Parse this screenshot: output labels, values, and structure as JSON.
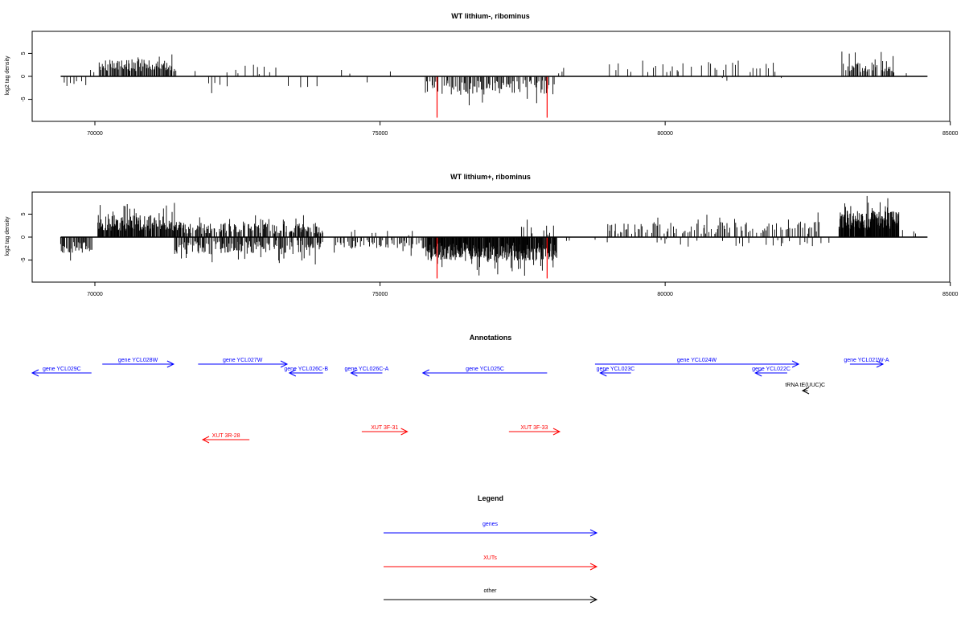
{
  "chart_data": [
    {
      "type": "bar",
      "title": "WT lithium-, ribominus",
      "ylabel": "log2 tag density",
      "xlabel": "",
      "xlim": [
        68900,
        84990
      ],
      "ylim": [
        -9.8,
        9.8
      ],
      "x_ticks": [
        70000,
        75000,
        80000,
        85000
      ],
      "y_ticks": [
        -5,
        0,
        5
      ],
      "grid": false,
      "baseline": {
        "x_start": 69400,
        "x_end": 84600,
        "color": "#000000"
      },
      "markers": [
        {
          "x": 76000,
          "y": -9,
          "color": "#ff0000"
        },
        {
          "x": 77930,
          "y": -9,
          "color": "#ff0000"
        }
      ],
      "segments": [
        {
          "start": 69400,
          "end": 69850,
          "step": 60,
          "base": 1.8,
          "amp": 1.2,
          "sign": -1,
          "density": 0.85
        },
        {
          "start": 69850,
          "end": 70000,
          "step": 60,
          "base": 0.8,
          "amp": 1.2,
          "sign": 1,
          "density": 0.5
        },
        {
          "start": 70080,
          "end": 71420,
          "step": 15,
          "base": 2.2,
          "amp": 2.6,
          "sign": 1,
          "density": 0.95
        },
        {
          "start": 71500,
          "end": 72400,
          "step": 70,
          "base": 1.2,
          "amp": 2.0,
          "sign": 1,
          "density": 0.3
        },
        {
          "start": 72000,
          "end": 72300,
          "step": 60,
          "base": 1.0,
          "amp": 1.8,
          "sign": -1,
          "density": 0.5
        },
        {
          "start": 72400,
          "end": 73200,
          "step": 55,
          "base": 1.0,
          "amp": 2.5,
          "sign": 1,
          "density": 0.55
        },
        {
          "start": 73400,
          "end": 74000,
          "step": 55,
          "base": 1.2,
          "amp": 2.0,
          "sign": -1,
          "density": 0.45
        },
        {
          "start": 74200,
          "end": 74600,
          "step": 90,
          "base": 1.0,
          "amp": 1.0,
          "sign": 1,
          "density": 0.4
        },
        {
          "start": 74700,
          "end": 75000,
          "step": 70,
          "base": 1.2,
          "amp": 1.0,
          "sign": -1,
          "density": 0.5
        },
        {
          "start": 75000,
          "end": 75300,
          "step": 90,
          "base": 1.0,
          "amp": 1.4,
          "sign": 1,
          "density": 0.4
        },
        {
          "start": 75800,
          "end": 78050,
          "step": 18,
          "base": 1.6,
          "amp": 3.2,
          "sign": -1,
          "density": 0.75
        },
        {
          "start": 78050,
          "end": 78300,
          "step": 60,
          "base": 1.0,
          "amp": 1.0,
          "sign": 1,
          "density": 0.4
        },
        {
          "start": 79000,
          "end": 80100,
          "step": 60,
          "base": 1.0,
          "amp": 2.6,
          "sign": 1,
          "density": 0.55
        },
        {
          "start": 80100,
          "end": 82000,
          "step": 35,
          "base": 1.2,
          "amp": 2.6,
          "sign": 1,
          "density": 0.5
        },
        {
          "start": 81000,
          "end": 82500,
          "step": 120,
          "base": 0.7,
          "amp": 0.8,
          "sign": -1,
          "density": 0.3
        },
        {
          "start": 83100,
          "end": 84000,
          "step": 18,
          "base": 1.8,
          "amp": 2.5,
          "sign": 1,
          "density": 0.85
        },
        {
          "start": 84000,
          "end": 84300,
          "step": 60,
          "base": 0.8,
          "amp": 0.8,
          "sign": 1,
          "density": 0.5
        }
      ]
    },
    {
      "type": "bar",
      "title": "WT lithium+, ribominus",
      "ylabel": "log2 tag density",
      "xlabel": "",
      "xlim": [
        68900,
        84990
      ],
      "ylim": [
        -9.8,
        9.8
      ],
      "x_ticks": [
        70000,
        75000,
        80000,
        85000
      ],
      "y_ticks": [
        -5,
        0,
        5
      ],
      "grid": false,
      "baseline": {
        "x_start": 69400,
        "x_end": 84600,
        "color": "#000000"
      },
      "markers": [
        {
          "x": 76000,
          "y": -9,
          "color": "#ff0000"
        },
        {
          "x": 77930,
          "y": -9,
          "color": "#ff0000"
        }
      ],
      "segments": [
        {
          "start": 69400,
          "end": 69950,
          "step": 14,
          "base": 2.0,
          "amp": 2.5,
          "sign": -1,
          "density": 0.9
        },
        {
          "start": 70050,
          "end": 71500,
          "step": 10,
          "base": 2.8,
          "amp": 3.4,
          "sign": 1,
          "density": 0.95
        },
        {
          "start": 71500,
          "end": 74000,
          "step": 12,
          "base": 1.4,
          "amp": 2.4,
          "sign": 1,
          "density": 0.75
        },
        {
          "start": 71400,
          "end": 74000,
          "step": 14,
          "base": 1.4,
          "amp": 3.0,
          "sign": -1,
          "density": 0.75
        },
        {
          "start": 74200,
          "end": 75800,
          "step": 20,
          "base": 1.2,
          "amp": 2.0,
          "sign": -1,
          "density": 0.7
        },
        {
          "start": 74300,
          "end": 75700,
          "step": 60,
          "base": 0.8,
          "amp": 1.2,
          "sign": 1,
          "density": 0.3
        },
        {
          "start": 75800,
          "end": 78100,
          "step": 8,
          "base": 2.4,
          "amp": 4.0,
          "sign": -1,
          "density": 0.95
        },
        {
          "start": 77400,
          "end": 78050,
          "step": 30,
          "base": 1.0,
          "amp": 2.0,
          "sign": 1,
          "density": 0.5
        },
        {
          "start": 78100,
          "end": 79000,
          "step": 80,
          "base": 0.8,
          "amp": 0.8,
          "sign": -1,
          "density": 0.4
        },
        {
          "start": 79000,
          "end": 82700,
          "step": 22,
          "base": 1.4,
          "amp": 2.6,
          "sign": 1,
          "density": 0.65
        },
        {
          "start": 79800,
          "end": 82900,
          "step": 60,
          "base": 0.8,
          "amp": 1.6,
          "sign": -1,
          "density": 0.35
        },
        {
          "start": 83050,
          "end": 84100,
          "step": 7,
          "base": 3.2,
          "amp": 4.2,
          "sign": 1,
          "density": 0.95
        },
        {
          "start": 84100,
          "end": 84400,
          "step": 50,
          "base": 1.0,
          "amp": 1.2,
          "sign": 1,
          "density": 0.5
        }
      ]
    }
  ],
  "annotations": {
    "title": "Annotations",
    "features": [
      {
        "label": "gene YCL029C",
        "color": "#0000ff",
        "x0": 68900,
        "x1": 69940,
        "strand": "-",
        "lane": 1
      },
      {
        "label": "gene YCL028W",
        "color": "#0000ff",
        "x0": 70130,
        "x1": 71380,
        "strand": "+",
        "lane": 0
      },
      {
        "label": "gene YCL027W",
        "color": "#0000ff",
        "x0": 71810,
        "x1": 73370,
        "strand": "+",
        "lane": 0
      },
      {
        "label": "gene YCL026C-B",
        "color": "#0000ff",
        "x0": 73410,
        "x1": 74000,
        "strand": "-",
        "lane": 1
      },
      {
        "label": "gene YCL026C-A",
        "color": "#0000ff",
        "x0": 74490,
        "x1": 75040,
        "strand": "-",
        "lane": 1
      },
      {
        "label": "gene YCL025C",
        "color": "#0000ff",
        "x0": 75750,
        "x1": 77930,
        "strand": "-",
        "lane": 1
      },
      {
        "label": "gene YCL023C",
        "color": "#0000ff",
        "x0": 78860,
        "x1": 79400,
        "strand": "-",
        "lane": 1
      },
      {
        "label": "gene YCL024W",
        "color": "#0000ff",
        "x0": 78770,
        "x1": 82340,
        "strand": "+",
        "lane": 0
      },
      {
        "label": "gene YCL022C",
        "color": "#0000ff",
        "x0": 81580,
        "x1": 82140,
        "strand": "-",
        "lane": 1
      },
      {
        "label": "tRNA tE(UUC)C",
        "color": "#000000",
        "x0": 82410,
        "x1": 82500,
        "strand": "-",
        "lane": 2
      },
      {
        "label": "gene YCL021W-A",
        "color": "#0000ff",
        "x0": 83240,
        "x1": 83820,
        "strand": "+",
        "lane": 0
      },
      {
        "label": "XUT 3R-28",
        "color": "#ff0000",
        "x0": 71890,
        "x1": 72710,
        "strand": "-",
        "lane": 5
      },
      {
        "label": "XUT 3F-31",
        "color": "#ff0000",
        "x0": 74680,
        "x1": 75480,
        "strand": "+",
        "lane": 4
      },
      {
        "label": "XUT 3F-33",
        "color": "#ff0000",
        "x0": 77260,
        "x1": 78150,
        "strand": "+",
        "lane": 4
      }
    ]
  },
  "legend": {
    "title": "Legend",
    "entries": [
      {
        "label": "genes",
        "color": "#0000ff"
      },
      {
        "label": "XUTs",
        "color": "#ff0000"
      },
      {
        "label": "other",
        "color": "#000000"
      }
    ]
  }
}
